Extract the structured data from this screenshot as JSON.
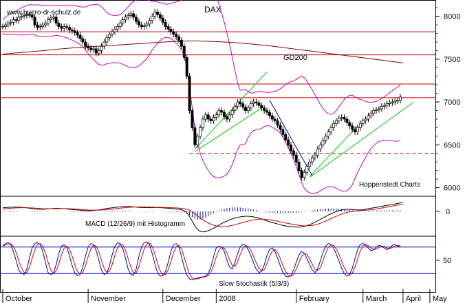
{
  "watermark": "www.buero-dr-schulz.de",
  "chart_data": {
    "type": "line",
    "title": "DAX",
    "source": "Hoppenstedt Charts",
    "x_months": [
      "October",
      "November",
      "December",
      "2008",
      "February",
      "March",
      "April",
      "May"
    ],
    "price_panel": {
      "y_ticks": [
        6000,
        6500,
        7000,
        7500,
        8000
      ],
      "ylim": [
        5900,
        8150
      ],
      "horizontal_levels": [
        7820,
        7550,
        7210,
        7050
      ],
      "support_dashed": 6400,
      "gd200_label": "GD200",
      "x_index_range": [
        0,
        150
      ],
      "close": [
        7880,
        7900,
        7920,
        7930,
        7960,
        7950,
        7990,
        8000,
        8010,
        8020,
        8015,
        7990,
        7900,
        7870,
        7880,
        7900,
        7920,
        7960,
        7980,
        7990,
        7920,
        7880,
        7860,
        7880,
        7870,
        7840,
        7830,
        7810,
        7780,
        7740,
        7700,
        7650,
        7630,
        7610,
        7620,
        7570,
        7600,
        7650,
        7700,
        7750,
        7790,
        7820,
        7850,
        7880,
        7920,
        7960,
        7990,
        8010,
        8030,
        7990,
        7940,
        7900,
        7880,
        7890,
        7910,
        7950,
        8000,
        8050,
        8020,
        7980,
        7930,
        7880,
        7850,
        7820,
        7790,
        7760,
        7720,
        7650,
        7520,
        7300,
        6900,
        6700,
        6500,
        6600,
        6700,
        6800,
        6850,
        6800,
        6780,
        6820,
        6850,
        6900,
        6880,
        6830,
        6800,
        6850,
        6900,
        6950,
        7000,
        6980,
        6940,
        6900,
        6930,
        6980,
        7000,
        6990,
        6960,
        6930,
        6900,
        6880,
        6840,
        6800,
        6780,
        6730,
        6680,
        6620,
        6560,
        6500,
        6430,
        6380,
        6300,
        6200,
        6120,
        6180,
        6250,
        6300,
        6350,
        6380,
        6450,
        6500,
        6550,
        6600,
        6650,
        6700,
        6750,
        6780,
        6810,
        6820,
        6800,
        6760,
        6720,
        6680,
        6650,
        6700,
        6750,
        6780,
        6800,
        6840,
        6870,
        6900,
        6910,
        6920,
        6950,
        6960,
        6980,
        6990,
        7000,
        7010,
        7020,
        7060
      ],
      "gd200": [
        7560,
        7562,
        7565,
        7567,
        7570,
        7572,
        7575,
        7578,
        7580,
        7583,
        7585,
        7588,
        7590,
        7593,
        7596,
        7599,
        7602,
        7605,
        7608,
        7611,
        7614,
        7617,
        7620,
        7623,
        7626,
        7628,
        7631,
        7633,
        7635,
        7637,
        7639,
        7641,
        7643,
        7645,
        7647,
        7649,
        7651,
        7653,
        7655,
        7657,
        7659,
        7661,
        7663,
        7665,
        7667,
        7669,
        7671,
        7673,
        7675,
        7677,
        7679,
        7681,
        7683,
        7685,
        7687,
        7689,
        7691,
        7693,
        7695,
        7697,
        7699,
        7701,
        7703,
        7705,
        7706,
        7707,
        7708,
        7709,
        7710,
        7711,
        7712,
        7712,
        7712,
        7712,
        7711,
        7710,
        7709,
        7708,
        7707,
        7706,
        7705,
        7704,
        7702,
        7700,
        7698,
        7696,
        7694,
        7692,
        7690,
        7688,
        7686,
        7683,
        7680,
        7677,
        7674,
        7671,
        7668,
        7665,
        7662,
        7659,
        7656,
        7652,
        7648,
        7644,
        7640,
        7636,
        7632,
        7628,
        7624,
        7620,
        7616,
        7612,
        7608,
        7604,
        7600,
        7596,
        7592,
        7588,
        7584,
        7580,
        7576,
        7572,
        7568,
        7564,
        7560,
        7556,
        7552,
        7548,
        7544,
        7540,
        7536,
        7532,
        7528,
        7524,
        7520,
        7516,
        7512,
        7508,
        7504,
        7500,
        7496,
        7492,
        7488,
        7484,
        7480,
        7476,
        7472,
        7468,
        7464,
        7460,
        7456
      ]
    },
    "macd_panel": {
      "label": "MACD (12/26/9) mit Histogramm",
      "y_ticks": [
        0
      ],
      "macd": [
        30,
        32,
        34,
        35,
        36,
        36,
        35,
        34,
        33,
        30,
        26,
        22,
        20,
        19,
        18,
        18,
        19,
        21,
        23,
        25,
        26,
        25,
        24,
        22,
        20,
        18,
        16,
        14,
        12,
        10,
        8,
        6,
        5,
        6,
        8,
        10,
        13,
        16,
        20,
        24,
        27,
        30,
        33,
        36,
        38,
        40,
        41,
        41,
        40,
        38,
        36,
        34,
        33,
        32,
        32,
        31,
        31,
        32,
        32,
        31,
        30,
        28,
        26,
        24,
        22,
        20,
        18,
        14,
        6,
        -10,
        -40,
        -80,
        -120,
        -150,
        -165,
        -170,
        -168,
        -160,
        -150,
        -140,
        -128,
        -115,
        -100,
        -90,
        -80,
        -70,
        -62,
        -55,
        -50,
        -45,
        -42,
        -40,
        -40,
        -42,
        -45,
        -50,
        -55,
        -62,
        -70,
        -78,
        -86,
        -92,
        -98,
        -104,
        -110,
        -116,
        -120,
        -124,
        -126,
        -128,
        -130,
        -130,
        -128,
        -124,
        -118,
        -110,
        -100,
        -90,
        -78,
        -66,
        -54,
        -42,
        -30,
        -20,
        -10,
        -2,
        6,
        12,
        16,
        18,
        18,
        16,
        14,
        12,
        12,
        14,
        18,
        22,
        26,
        30,
        34,
        38,
        42,
        46,
        50,
        54,
        58,
        62,
        66,
        70,
        76
      ],
      "signal": [
        20,
        22,
        24,
        26,
        28,
        29,
        30,
        31,
        31,
        31,
        30,
        29,
        27,
        26,
        24,
        23,
        22,
        22,
        22,
        22,
        23,
        23,
        23,
        23,
        23,
        22,
        21,
        20,
        19,
        17,
        15,
        14,
        12,
        11,
        11,
        11,
        11,
        12,
        13,
        15,
        17,
        19,
        22,
        24,
        27,
        29,
        31,
        33,
        35,
        36,
        37,
        37,
        37,
        37,
        36,
        36,
        35,
        35,
        34,
        34,
        33,
        33,
        32,
        31,
        30,
        29,
        27,
        25,
        22,
        18,
        10,
        -2,
        -18,
        -36,
        -54,
        -70,
        -84,
        -96,
        -106,
        -114,
        -120,
        -124,
        -126,
        -126,
        -124,
        -120,
        -116,
        -110,
        -104,
        -98,
        -92,
        -86,
        -80,
        -75,
        -70,
        -67,
        -65,
        -64,
        -65,
        -67,
        -70,
        -73,
        -77,
        -81,
        -86,
        -91,
        -96,
        -100,
        -104,
        -108,
        -112,
        -115,
        -118,
        -120,
        -120,
        -118,
        -116,
        -112,
        -106,
        -98,
        -90,
        -80,
        -70,
        -60,
        -50,
        -40,
        -30,
        -22,
        -14,
        -8,
        -3,
        0,
        2,
        4,
        6,
        8,
        10,
        12,
        14,
        17,
        20,
        24,
        28,
        32,
        36,
        40,
        44,
        48,
        52,
        56,
        60
      ]
    },
    "stoch_panel": {
      "label": "Slow Stochastik (5/3/3)",
      "y_ticks": [
        50
      ],
      "overbought": 80,
      "oversold": 20,
      "k": [
        82,
        88,
        90,
        85,
        70,
        50,
        28,
        20,
        18,
        30,
        55,
        78,
        88,
        90,
        86,
        70,
        45,
        22,
        18,
        20,
        40,
        65,
        82,
        85,
        80,
        60,
        38,
        22,
        15,
        18,
        35,
        60,
        80,
        88,
        86,
        72,
        50,
        28,
        18,
        20,
        38,
        62,
        82,
        90,
        88,
        76,
        55,
        30,
        18,
        16,
        30,
        58,
        80,
        90,
        92,
        86,
        66,
        42,
        22,
        14,
        15,
        25,
        45,
        70,
        85,
        88,
        80,
        58,
        34,
        16,
        8,
        6,
        8,
        10,
        12,
        12,
        14,
        20,
        35,
        58,
        78,
        82,
        80,
        70,
        50,
        35,
        30,
        45,
        65,
        80,
        86,
        84,
        74,
        60,
        44,
        30,
        22,
        25,
        40,
        60,
        75,
        78,
        70,
        55,
        38,
        22,
        14,
        12,
        16,
        28,
        46,
        62,
        70,
        66,
        54,
        40,
        28,
        22,
        30,
        48,
        68,
        82,
        88,
        86,
        78,
        64,
        48,
        32,
        20,
        14,
        18,
        32,
        54,
        74,
        86,
        88,
        84,
        78,
        72,
        74,
        80,
        84,
        82,
        78,
        74,
        78,
        84,
        86,
        82,
        80
      ]
    }
  }
}
